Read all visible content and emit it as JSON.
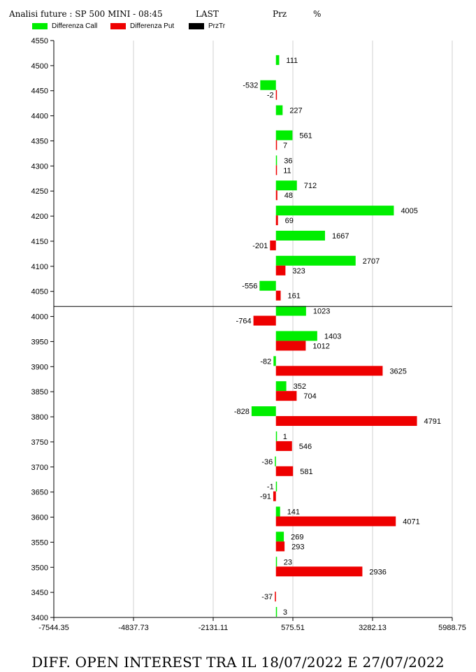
{
  "header": {
    "title": "Analisi future : SP 500 MINI - 08:45",
    "last_label": "LAST",
    "prz_label": "Prz",
    "pct_label": "%"
  },
  "legend": [
    {
      "name": "Differenza Call",
      "color": "#00ee00"
    },
    {
      "name": "Differenza Put",
      "color": "#ee0000"
    },
    {
      "name": "PrzTr",
      "color": "#000000"
    }
  ],
  "footer": "DIFF. OPEN INTEREST TRA IL 18/07/2022 E 27/07/2022",
  "chart_data": {
    "type": "bar",
    "orientation": "horizontal",
    "categories": [
      4500,
      4450,
      4400,
      4350,
      4300,
      4250,
      4200,
      4150,
      4100,
      4050,
      4000,
      3950,
      3900,
      3850,
      3800,
      3750,
      3700,
      3650,
      3600,
      3550,
      3500,
      3450,
      3400
    ],
    "series": [
      {
        "name": "Differenza Call",
        "color": "#00ee00",
        "values": [
          111,
          -532,
          227,
          561,
          36,
          712,
          4005,
          1667,
          2707,
          -556,
          1023,
          1403,
          -82,
          352,
          -828,
          1,
          -36,
          -1,
          141,
          269,
          23,
          null,
          3
        ]
      },
      {
        "name": "Differenza Put",
        "color": "#ee0000",
        "values": [
          null,
          -2,
          null,
          7,
          11,
          48,
          69,
          -201,
          323,
          161,
          -764,
          1012,
          3625,
          704,
          4791,
          546,
          581,
          -91,
          4071,
          293,
          2936,
          -37,
          null
        ]
      }
    ],
    "y_ticks": [
      4550,
      4500,
      4450,
      4400,
      4350,
      4300,
      4250,
      4200,
      4150,
      4100,
      4050,
      4000,
      3950,
      3900,
      3850,
      3800,
      3750,
      3700,
      3650,
      3600,
      3550,
      3500,
      3450,
      3400
    ],
    "ylim": [
      3400,
      4550
    ],
    "x_ticks": [
      "-7544.35",
      "-4837.73",
      "-2131.11",
      "575.51",
      "3282.13",
      "5988.75"
    ],
    "xlim": [
      -7544.35,
      5988.75
    ],
    "prztr_level": 4020,
    "grid": "vertical"
  }
}
